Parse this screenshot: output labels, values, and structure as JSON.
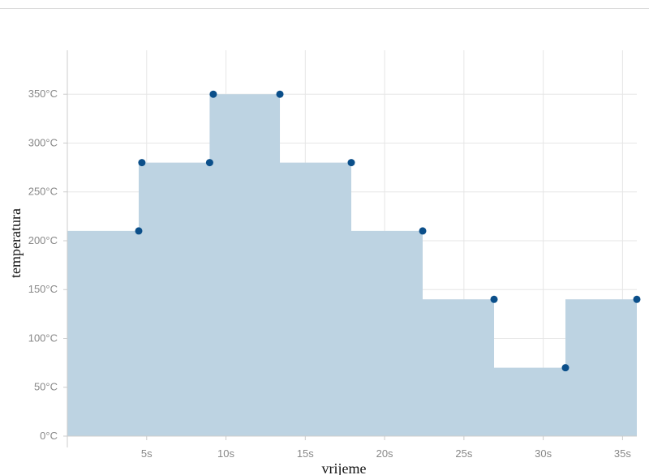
{
  "chart_data": {
    "type": "area",
    "step": "before",
    "xlabel": "vrijeme",
    "ylabel": "temperatura",
    "x_unit": "s",
    "y_unit": "°C",
    "xlim": [
      0,
      35.9
    ],
    "ylim": [
      0,
      395
    ],
    "grid": true,
    "x_ticks": [
      5,
      10,
      15,
      20,
      25,
      30,
      35
    ],
    "x_tick_labels": [
      "5s",
      "10s",
      "15s",
      "20s",
      "25s",
      "30s",
      "35s"
    ],
    "y_ticks": [
      0,
      50,
      100,
      150,
      200,
      250,
      300,
      350
    ],
    "y_tick_labels": [
      "0°C",
      "50°C",
      "100°C",
      "150°C",
      "200°C",
      "250°C",
      "300°C",
      "350°C"
    ],
    "series": [
      {
        "points": [
          {
            "x": 4.5,
            "y": 210
          },
          {
            "x": 4.7,
            "y": 280
          },
          {
            "x": 8.97,
            "y": 280
          },
          {
            "x": 9.2,
            "y": 350
          },
          {
            "x": 13.4,
            "y": 350
          },
          {
            "x": 17.9,
            "y": 280
          },
          {
            "x": 22.4,
            "y": 210
          },
          {
            "x": 26.9,
            "y": 140
          },
          {
            "x": 31.4,
            "y": 70
          },
          {
            "x": 35.9,
            "y": 140
          }
        ]
      }
    ],
    "colors": {
      "fill": "#bdd3e2",
      "marker": "#0b4f8a",
      "grid": "#e6e6e6",
      "axis": "#cccccc",
      "tick_text": "#888888"
    }
  }
}
